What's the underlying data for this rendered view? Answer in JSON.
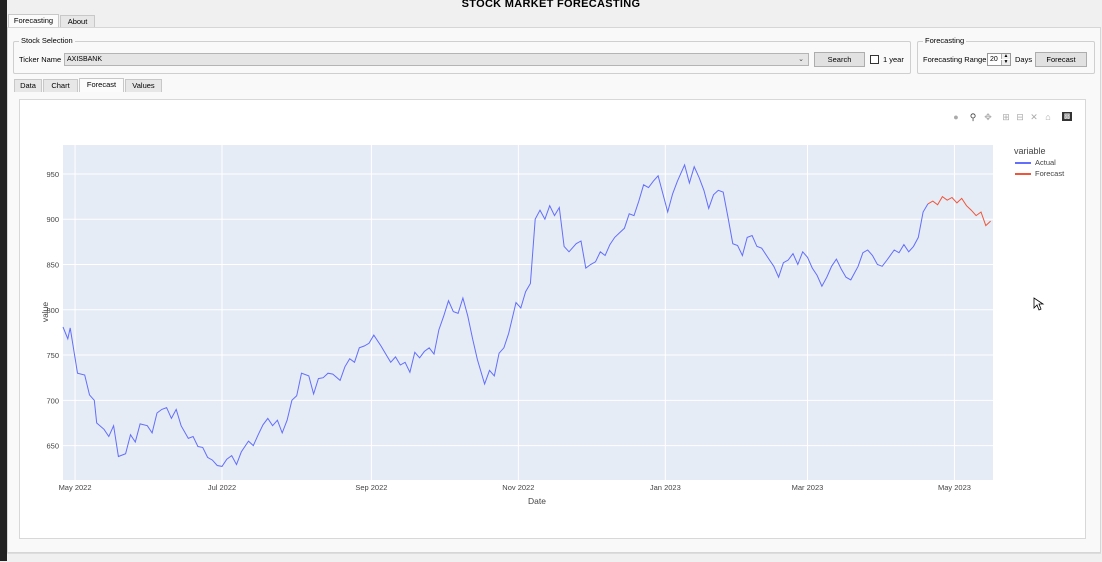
{
  "app": {
    "title": "STOCK MARKET FORECASTING"
  },
  "top_tabs": [
    {
      "label": "Forecasting"
    },
    {
      "label": "About"
    }
  ],
  "stock_selection": {
    "group_title": "Stock Selection",
    "ticker_label": "Ticker Name",
    "ticker_value": "AXISBANK",
    "search_label": "Search",
    "one_year_label": "1 year",
    "one_year_checked": false
  },
  "forecasting": {
    "group_title": "Forecasting",
    "range_label": "Forecasting Range",
    "range_value": "20",
    "days_label": "Days",
    "forecast_button": "Forecast"
  },
  "view_tabs": [
    {
      "label": "Data"
    },
    {
      "label": "Chart"
    },
    {
      "label": "Forecast"
    },
    {
      "label": "Values"
    }
  ],
  "active_view_tab": "Forecast",
  "toolbar_icons": [
    "camera-icon",
    "zoom-icon",
    "pan-icon",
    "zoom-in-icon",
    "zoom-out-icon",
    "autoscale-icon",
    "home-icon",
    "plotly-logo-icon"
  ],
  "colors": {
    "actual": "#636efa",
    "forecast": "#ef553b",
    "plot_bg": "#e5ecf6"
  },
  "chart_data": {
    "type": "line",
    "xlabel": "Date",
    "ylabel": "value",
    "legend_title": "variable",
    "legend_position": "top-right",
    "grid": true,
    "x_range": [
      "2022-04-26",
      "2023-05-17"
    ],
    "ylim": [
      612,
      982
    ],
    "x_ticks": [
      {
        "date": "2022-05-01",
        "label": "May 2022"
      },
      {
        "date": "2022-07-01",
        "label": "Jul 2022"
      },
      {
        "date": "2022-09-01",
        "label": "Sep 2022"
      },
      {
        "date": "2022-11-01",
        "label": "Nov 2022"
      },
      {
        "date": "2023-01-01",
        "label": "Jan 2023"
      },
      {
        "date": "2023-03-01",
        "label": "Mar 2023"
      },
      {
        "date": "2023-05-01",
        "label": "May 2023"
      }
    ],
    "y_ticks": [
      650,
      700,
      750,
      800,
      850,
      900,
      950
    ],
    "series": [
      {
        "name": "Actual",
        "color": "#636efa",
        "points": [
          [
            "2022-04-26",
            781
          ],
          [
            "2022-04-28",
            768
          ],
          [
            "2022-04-29",
            780
          ],
          [
            "2022-05-02",
            730
          ],
          [
            "2022-05-05",
            728
          ],
          [
            "2022-05-07",
            706
          ],
          [
            "2022-05-09",
            700
          ],
          [
            "2022-05-10",
            675
          ],
          [
            "2022-05-13",
            668
          ],
          [
            "2022-05-15",
            660
          ],
          [
            "2022-05-17",
            672
          ],
          [
            "2022-05-19",
            638
          ],
          [
            "2022-05-22",
            641
          ],
          [
            "2022-05-24",
            662
          ],
          [
            "2022-05-26",
            654
          ],
          [
            "2022-05-28",
            674
          ],
          [
            "2022-05-31",
            672
          ],
          [
            "2022-06-02",
            664
          ],
          [
            "2022-06-04",
            686
          ],
          [
            "2022-06-06",
            690
          ],
          [
            "2022-06-08",
            692
          ],
          [
            "2022-06-10",
            680
          ],
          [
            "2022-06-12",
            690
          ],
          [
            "2022-06-14",
            672
          ],
          [
            "2022-06-17",
            658
          ],
          [
            "2022-06-19",
            660
          ],
          [
            "2022-06-21",
            649
          ],
          [
            "2022-06-23",
            648
          ],
          [
            "2022-06-25",
            637
          ],
          [
            "2022-06-27",
            634
          ],
          [
            "2022-06-29",
            628
          ],
          [
            "2022-07-01",
            627
          ],
          [
            "2022-07-03",
            635
          ],
          [
            "2022-07-05",
            639
          ],
          [
            "2022-07-07",
            629
          ],
          [
            "2022-07-09",
            643
          ],
          [
            "2022-07-12",
            655
          ],
          [
            "2022-07-14",
            650
          ],
          [
            "2022-07-16",
            662
          ],
          [
            "2022-07-18",
            673
          ],
          [
            "2022-07-20",
            680
          ],
          [
            "2022-07-22",
            672
          ],
          [
            "2022-07-24",
            678
          ],
          [
            "2022-07-26",
            664
          ],
          [
            "2022-07-28",
            678
          ],
          [
            "2022-07-30",
            700
          ],
          [
            "2022-08-01",
            705
          ],
          [
            "2022-08-03",
            730
          ],
          [
            "2022-08-06",
            727
          ],
          [
            "2022-08-08",
            707
          ],
          [
            "2022-08-10",
            724
          ],
          [
            "2022-08-12",
            725
          ],
          [
            "2022-08-14",
            730
          ],
          [
            "2022-08-16",
            729
          ],
          [
            "2022-08-19",
            722
          ],
          [
            "2022-08-21",
            737
          ],
          [
            "2022-08-23",
            746
          ],
          [
            "2022-08-25",
            742
          ],
          [
            "2022-08-27",
            758
          ],
          [
            "2022-08-29",
            760
          ],
          [
            "2022-08-31",
            763
          ],
          [
            "2022-09-02",
            772
          ],
          [
            "2022-09-05",
            760
          ],
          [
            "2022-09-07",
            751
          ],
          [
            "2022-09-09",
            742
          ],
          [
            "2022-09-11",
            748
          ],
          [
            "2022-09-13",
            739
          ],
          [
            "2022-09-15",
            742
          ],
          [
            "2022-09-17",
            731
          ],
          [
            "2022-09-19",
            753
          ],
          [
            "2022-09-21",
            747
          ],
          [
            "2022-09-23",
            754
          ],
          [
            "2022-09-25",
            758
          ],
          [
            "2022-09-27",
            751
          ],
          [
            "2022-09-29",
            778
          ],
          [
            "2022-10-01",
            793
          ],
          [
            "2022-10-03",
            810
          ],
          [
            "2022-10-05",
            798
          ],
          [
            "2022-10-07",
            796
          ],
          [
            "2022-10-09",
            813
          ],
          [
            "2022-10-11",
            793
          ],
          [
            "2022-10-13",
            768
          ],
          [
            "2022-10-15",
            745
          ],
          [
            "2022-10-18",
            718
          ],
          [
            "2022-10-20",
            733
          ],
          [
            "2022-10-22",
            727
          ],
          [
            "2022-10-24",
            752
          ],
          [
            "2022-10-26",
            758
          ],
          [
            "2022-10-28",
            774
          ],
          [
            "2022-10-31",
            808
          ],
          [
            "2022-11-02",
            802
          ],
          [
            "2022-11-04",
            820
          ],
          [
            "2022-11-06",
            829
          ],
          [
            "2022-11-08",
            900
          ],
          [
            "2022-11-10",
            910
          ],
          [
            "2022-11-12",
            900
          ],
          [
            "2022-11-14",
            915
          ],
          [
            "2022-11-16",
            904
          ],
          [
            "2022-11-18",
            913
          ],
          [
            "2022-11-20",
            870
          ],
          [
            "2022-11-22",
            864
          ],
          [
            "2022-11-25",
            873
          ],
          [
            "2022-11-27",
            876
          ],
          [
            "2022-11-29",
            846
          ],
          [
            "2022-12-01",
            850
          ],
          [
            "2022-12-03",
            853
          ],
          [
            "2022-12-05",
            864
          ],
          [
            "2022-12-07",
            860
          ],
          [
            "2022-12-09",
            872
          ],
          [
            "2022-12-11",
            880
          ],
          [
            "2022-12-13",
            885
          ],
          [
            "2022-12-15",
            890
          ],
          [
            "2022-12-17",
            906
          ],
          [
            "2022-12-19",
            904
          ],
          [
            "2022-12-21",
            920
          ],
          [
            "2022-12-23",
            938
          ],
          [
            "2022-12-25",
            935
          ],
          [
            "2022-12-27",
            942
          ],
          [
            "2022-12-29",
            948
          ],
          [
            "2022-12-31",
            928
          ],
          [
            "2023-01-02",
            908
          ],
          [
            "2023-01-04",
            928
          ],
          [
            "2023-01-06",
            942
          ],
          [
            "2023-01-09",
            960
          ],
          [
            "2023-01-11",
            940
          ],
          [
            "2023-01-13",
            958
          ],
          [
            "2023-01-15",
            946
          ],
          [
            "2023-01-17",
            932
          ],
          [
            "2023-01-19",
            912
          ],
          [
            "2023-01-21",
            927
          ],
          [
            "2023-01-23",
            932
          ],
          [
            "2023-01-25",
            930
          ],
          [
            "2023-01-27",
            902
          ],
          [
            "2023-01-29",
            873
          ],
          [
            "2023-01-31",
            871
          ],
          [
            "2023-02-02",
            860
          ],
          [
            "2023-02-04",
            880
          ],
          [
            "2023-02-06",
            882
          ],
          [
            "2023-02-08",
            870
          ],
          [
            "2023-02-10",
            868
          ],
          [
            "2023-02-13",
            856
          ],
          [
            "2023-02-15",
            848
          ],
          [
            "2023-02-17",
            836
          ],
          [
            "2023-02-19",
            852
          ],
          [
            "2023-02-21",
            855
          ],
          [
            "2023-02-23",
            862
          ],
          [
            "2023-02-25",
            850
          ],
          [
            "2023-02-27",
            864
          ],
          [
            "2023-03-01",
            858
          ],
          [
            "2023-03-03",
            846
          ],
          [
            "2023-03-05",
            838
          ],
          [
            "2023-03-07",
            826
          ],
          [
            "2023-03-09",
            836
          ],
          [
            "2023-03-11",
            848
          ],
          [
            "2023-03-13",
            856
          ],
          [
            "2023-03-15",
            845
          ],
          [
            "2023-03-17",
            836
          ],
          [
            "2023-03-19",
            833
          ],
          [
            "2023-03-22",
            848
          ],
          [
            "2023-03-24",
            863
          ],
          [
            "2023-03-26",
            866
          ],
          [
            "2023-03-28",
            860
          ],
          [
            "2023-03-30",
            850
          ],
          [
            "2023-04-01",
            848
          ],
          [
            "2023-04-03",
            855
          ],
          [
            "2023-04-06",
            866
          ],
          [
            "2023-04-08",
            863
          ],
          [
            "2023-04-10",
            872
          ],
          [
            "2023-04-12",
            864
          ],
          [
            "2023-04-14",
            870
          ],
          [
            "2023-04-16",
            880
          ],
          [
            "2023-04-18",
            908
          ],
          [
            "2023-04-20",
            917
          ]
        ]
      },
      {
        "name": "Forecast",
        "color": "#ef553b",
        "points": [
          [
            "2023-04-20",
            917
          ],
          [
            "2023-04-22",
            920
          ],
          [
            "2023-04-24",
            916
          ],
          [
            "2023-04-26",
            925
          ],
          [
            "2023-04-28",
            921
          ],
          [
            "2023-04-30",
            924
          ],
          [
            "2023-05-02",
            918
          ],
          [
            "2023-05-04",
            923
          ],
          [
            "2023-05-06",
            915
          ],
          [
            "2023-05-08",
            910
          ],
          [
            "2023-05-10",
            904
          ],
          [
            "2023-05-12",
            908
          ],
          [
            "2023-05-14",
            893
          ],
          [
            "2023-05-16",
            898
          ]
        ]
      }
    ]
  }
}
